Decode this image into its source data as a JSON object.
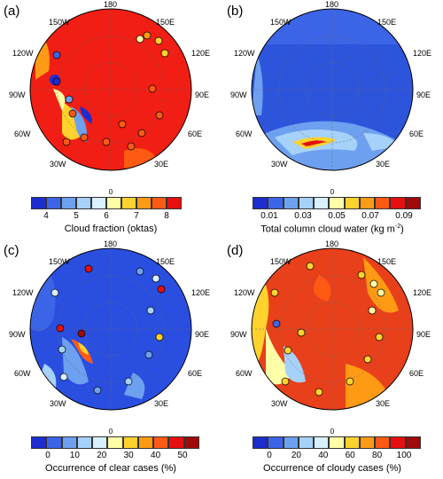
{
  "panels": [
    {
      "label": "(a)",
      "colorbar_title": "Cloud fraction (oktas)",
      "ticks": [
        "4",
        "5",
        "6",
        "7",
        "8"
      ],
      "colors": [
        "#1e2dcf",
        "#3c64e6",
        "#6ea0f0",
        "#a6d2fa",
        "#d8f0ff",
        "#ffffa8",
        "#ffd22d",
        "#ff9a14",
        "#ff5a14",
        "#e60f0f"
      ],
      "base_color": "#f01e14"
    },
    {
      "label": "(b)",
      "colorbar_title": "Total column cloud water (kg m",
      "title_sup": "-2",
      "ticks": [
        "0.01",
        "0.03",
        "0.05",
        "0.07",
        "0.09"
      ],
      "colors": [
        "#1e2dcf",
        "#3c64e6",
        "#6ea0f0",
        "#a6d2fa",
        "#d8f0ff",
        "#ffffa8",
        "#ffd22d",
        "#ff9a14",
        "#ff5a14",
        "#e60f0f",
        "#a00a0a"
      ],
      "base_color": "#2d55dc"
    },
    {
      "label": "(c)",
      "colorbar_title": "Occurrence of clear cases (%)",
      "ticks": [
        "0",
        "10",
        "20",
        "30",
        "40",
        "50"
      ],
      "colors": [
        "#1e2dcf",
        "#3c64e6",
        "#6ea0f0",
        "#a6d2fa",
        "#d8f0ff",
        "#ffffa8",
        "#ffd22d",
        "#ff9a14",
        "#ff5a14",
        "#e60f0f",
        "#a00a0a"
      ],
      "base_color": "#2a4fe0"
    },
    {
      "label": "(d)",
      "colorbar_title": "Occurrence of cloudy cases (%)",
      "ticks": [
        "0",
        "20",
        "40",
        "60",
        "80",
        "100"
      ],
      "colors": [
        "#1e2dcf",
        "#3c64e6",
        "#6ea0f0",
        "#a6d2fa",
        "#d8f0ff",
        "#ffffa8",
        "#ffd22d",
        "#ff9a14",
        "#ff5a14",
        "#e60f0f",
        "#a00a0a"
      ],
      "base_color": "#e8401a"
    }
  ],
  "longitude_labels": {
    "top": "180",
    "upper_left": "150W",
    "upper_right": "150E",
    "left_upper": "120W",
    "right_upper": "120E",
    "left": "90W",
    "right": "90E",
    "left_lower": "60W",
    "right_lower": "60E",
    "lower_left": "30W",
    "lower_right": "30E",
    "bottom": "0"
  }
}
